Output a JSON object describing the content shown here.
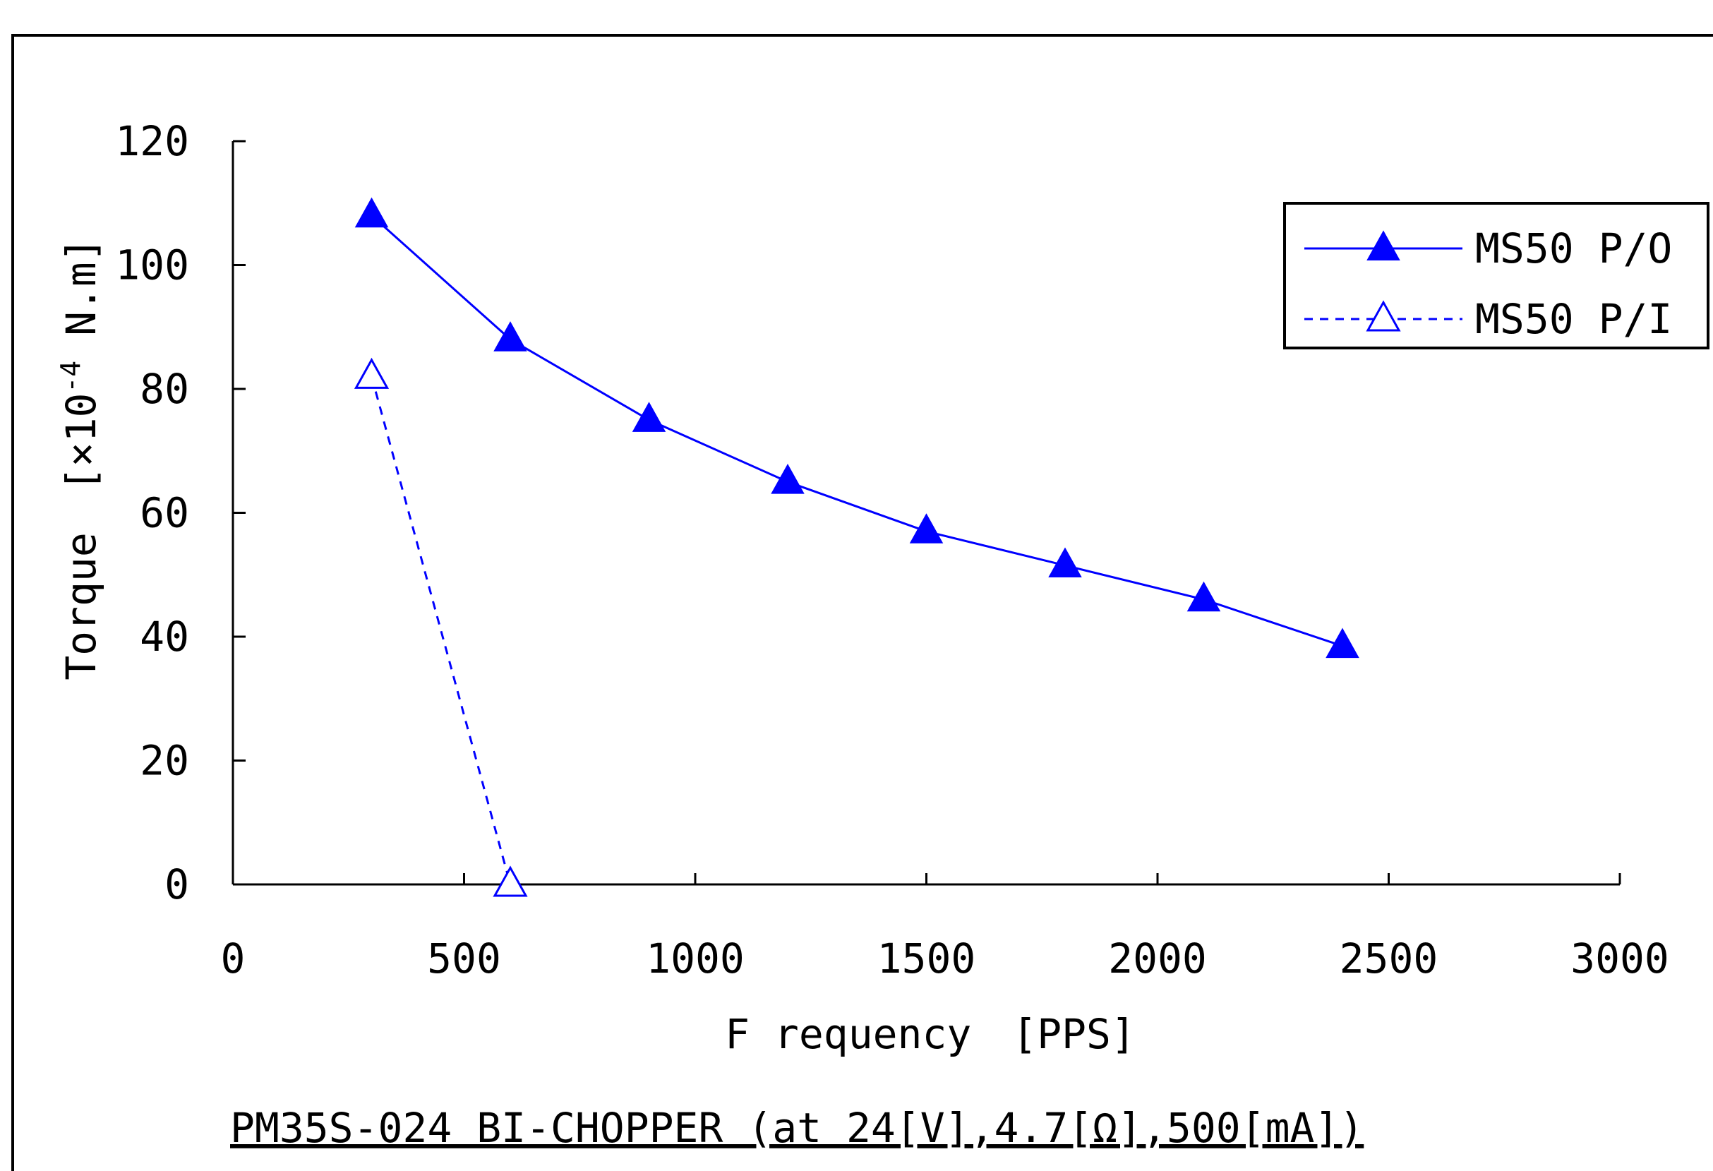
{
  "chart_data": {
    "type": "line",
    "xlabel": "F requency　[PPS]",
    "ylabel_main": "Torque　[×10",
    "ylabel_exp": "-4",
    "ylabel_unit": " N.m]",
    "caption": "PM35S-024 BI-CHOPPER (at 24[V],4.7[Ω],500[mA])",
    "xlim": [
      0,
      3000
    ],
    "ylim": [
      0,
      120
    ],
    "xticks": [
      0,
      500,
      1000,
      1500,
      2000,
      2500,
      3000
    ],
    "yticks": [
      0,
      20,
      40,
      60,
      80,
      100,
      120
    ],
    "grid": false,
    "legend_position": "top-right",
    "series": [
      {
        "name": "MS50  P/O",
        "color": "#0000ff",
        "style": "solid",
        "marker": "filled-triangle",
        "x": [
          300,
          600,
          900,
          1200,
          1500,
          1800,
          2100,
          2400
        ],
        "y": [
          108,
          88,
          75,
          65,
          57,
          51.5,
          46,
          38.5
        ]
      },
      {
        "name": "MS50  P/I",
        "color": "#0000ff",
        "style": "dashed",
        "marker": "hollow-triangle",
        "x": [
          300,
          600
        ],
        "y": [
          82,
          0
        ]
      }
    ]
  }
}
